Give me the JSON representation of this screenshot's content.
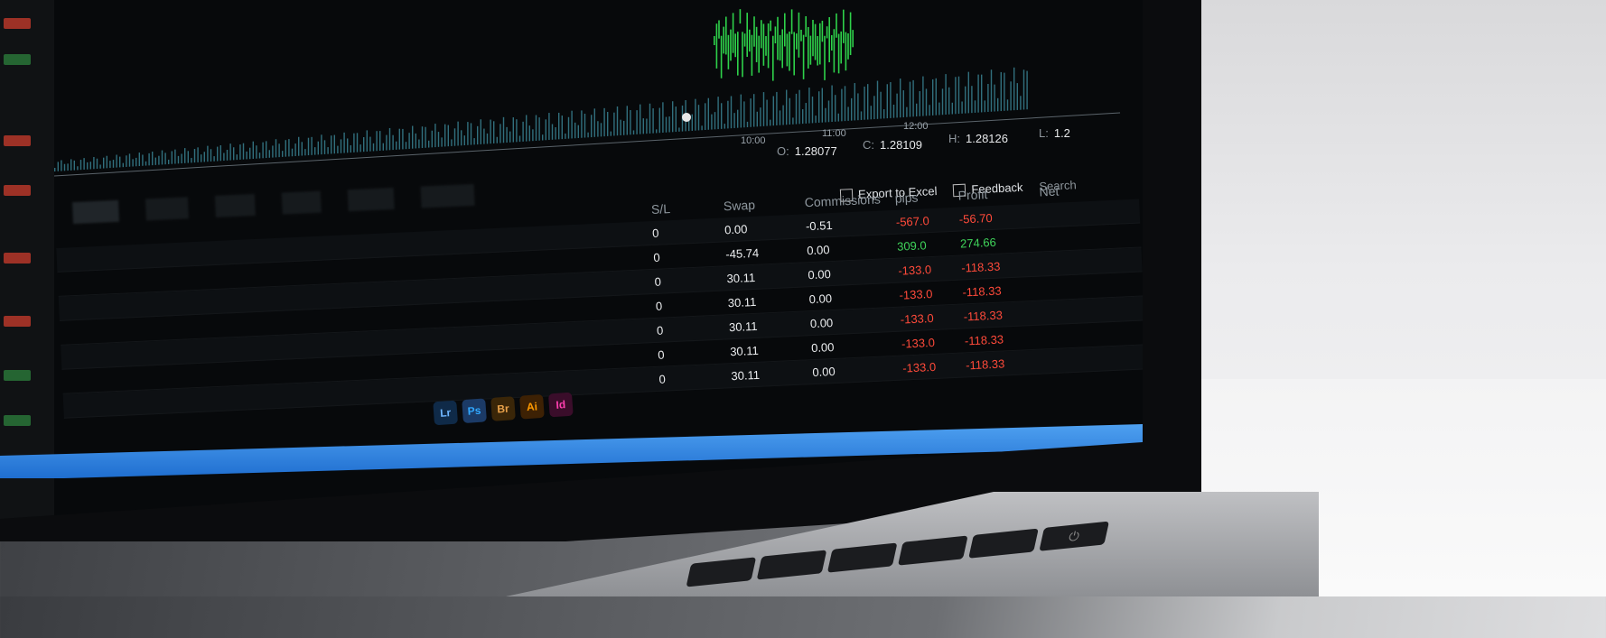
{
  "quote": {
    "o_label": "O:",
    "o_value": "1.28077",
    "c_label": "C:",
    "c_value": "1.28109",
    "h_label": "H:",
    "h_value": "1.28126",
    "l_label": "L:",
    "l_value": "1.2"
  },
  "time_axis": [
    "10:00",
    "11:00",
    "12:00"
  ],
  "toolbar": {
    "export_label": "Export to Excel",
    "feedback_label": "Feedback",
    "search_label": "Search"
  },
  "columns": [
    "S/L",
    "Swap",
    "Commissions",
    "pips",
    "Profit",
    "Net"
  ],
  "rows": [
    {
      "swap": "0.00",
      "commission": "-0.51",
      "pips": "-567.0",
      "profit": "-56.70",
      "pips_class": "neg"
    },
    {
      "swap": "-45.74",
      "commission": "0.00",
      "pips": "309.0",
      "profit": "274.66",
      "pips_class": "pos"
    },
    {
      "swap": "30.11",
      "commission": "0.00",
      "pips": "-133.0",
      "profit": "-118.33",
      "pips_class": "neg"
    },
    {
      "swap": "30.11",
      "commission": "0.00",
      "pips": "-133.0",
      "profit": "-118.33",
      "pips_class": "neg"
    },
    {
      "swap": "30.11",
      "commission": "0.00",
      "pips": "-133.0",
      "profit": "-118.33",
      "pips_class": "neg"
    },
    {
      "swap": "30.11",
      "commission": "0.00",
      "pips": "-133.0",
      "profit": "-118.33",
      "pips_class": "neg"
    },
    {
      "swap": "30.11",
      "commission": "0.00",
      "pips": "-133.0",
      "profit": "-118.33",
      "pips_class": "neg"
    }
  ],
  "dock_icons": [
    "Lr",
    "Ps",
    "Br",
    "Ai",
    "Id"
  ],
  "colors": {
    "loss": "#ff4a3a",
    "gain": "#3fd35a",
    "dock": "#2f86e2"
  }
}
